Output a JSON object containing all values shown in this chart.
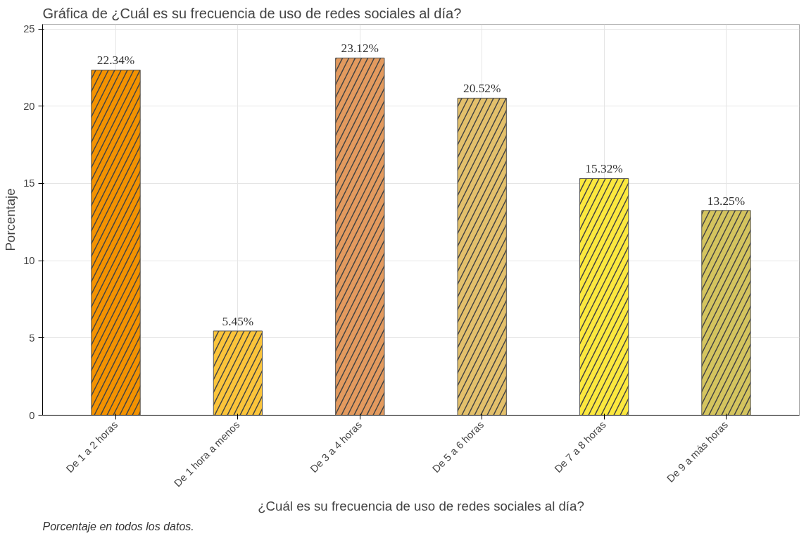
{
  "chart_data": {
    "type": "bar",
    "title": "Gráfica de ¿Cuál es su frecuencia de uso de redes sociales al día?",
    "xlabel": "¿Cuál es su frecuencia de uso de redes sociales al día?",
    "ylabel": "Porcentaje",
    "annotations": [
      "Porcentaje en todos los datos."
    ],
    "categories": [
      "De 1 a 2 horas",
      "De 1 hora a menos",
      "De 3 a 4 horas",
      "De 5 a 6 horas",
      "De 7 a 8 horas",
      "De 9 a más horas"
    ],
    "values": [
      22.34,
      5.45,
      23.12,
      20.52,
      15.32,
      13.25
    ],
    "value_labels": [
      "22.34%",
      "5.45%",
      "23.12%",
      "20.52%",
      "15.32%",
      "13.25%"
    ],
    "colors": [
      "#f39200",
      "#fbc43a",
      "#e39a5e",
      "#e3c06b",
      "#fce83e",
      "#d4c45e"
    ],
    "ylim": [
      0,
      25.3
    ],
    "yticks": [
      0,
      5,
      10,
      15,
      20,
      25
    ],
    "grid": true
  }
}
